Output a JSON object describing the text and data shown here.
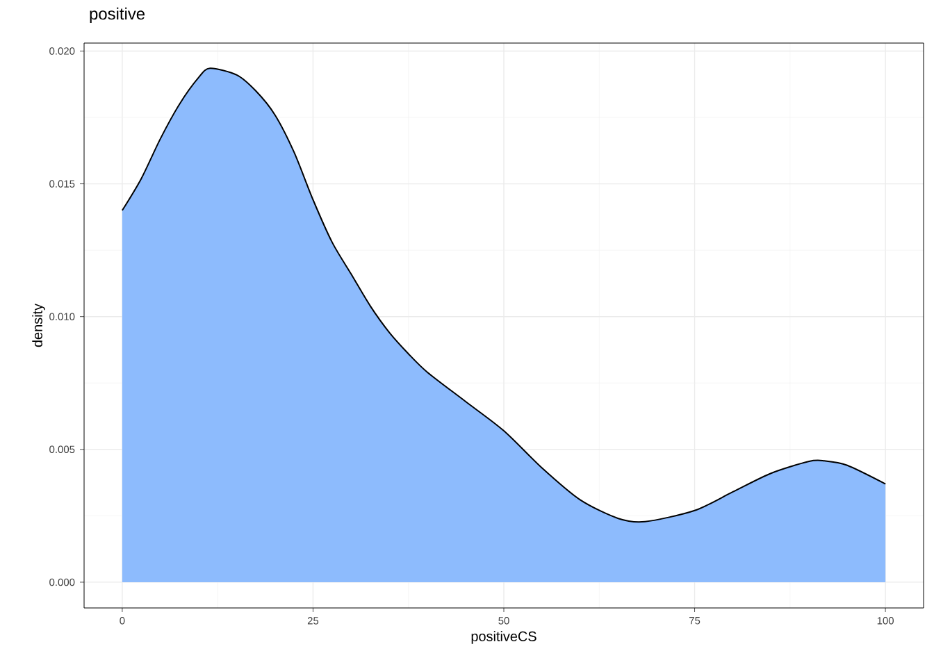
{
  "chart_data": {
    "type": "area",
    "title": "positive",
    "xlabel": "positiveCS",
    "ylabel": "density",
    "x": [
      0,
      2.5,
      5,
      7.5,
      10,
      11.5,
      15,
      17.5,
      20,
      22.5,
      25,
      27.5,
      30,
      32.5,
      35,
      37.5,
      40,
      45,
      50,
      55,
      60,
      65,
      68.5,
      75,
      80,
      85,
      90,
      92,
      95,
      100
    ],
    "series": [
      {
        "color": "#8dbbfd",
        "values": [
          0.014,
          0.0152,
          0.0167,
          0.018,
          0.019,
          0.01935,
          0.0191,
          0.0185,
          0.0176,
          0.0162,
          0.0144,
          0.0128,
          0.0116,
          0.0104,
          0.0094,
          0.0086,
          0.0079,
          0.0068,
          0.0057,
          0.0043,
          0.0031,
          0.0024,
          0.00228,
          0.0027,
          0.0034,
          0.0041,
          0.00455,
          0.00457,
          0.0044,
          0.0037
        ]
      }
    ],
    "xlim": [
      -5,
      105
    ],
    "ylim": [
      -0.00097,
      0.0203
    ],
    "xticks": [
      0,
      25,
      50,
      75,
      100
    ],
    "yticks": [
      {
        "value": 0,
        "label": "0.000"
      },
      {
        "value": 0.005,
        "label": "0.005"
      },
      {
        "value": 0.01,
        "label": "0.010"
      },
      {
        "value": 0.015,
        "label": "0.015"
      },
      {
        "value": 0.02,
        "label": "0.020"
      }
    ],
    "grid": true
  }
}
